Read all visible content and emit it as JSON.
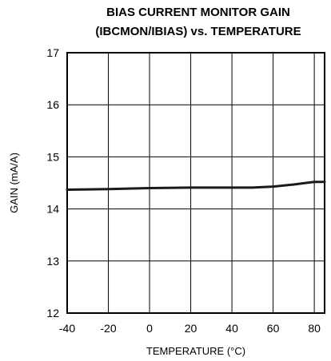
{
  "chart_data": {
    "type": "line",
    "title_line1": "BIAS CURRENT MONITOR GAIN",
    "title_line2": "(IBCMON/IBIAS) vs. TEMPERATURE",
    "xlabel": "TEMPERATURE (°C)",
    "ylabel": "GAIN (mA/A)",
    "xlim": [
      -40,
      85
    ],
    "ylim": [
      12,
      17
    ],
    "xticks": [
      "-40",
      "-20",
      "0",
      "20",
      "40",
      "60",
      "80"
    ],
    "yticks": [
      "12",
      "13",
      "14",
      "15",
      "16",
      "17"
    ],
    "grid": true,
    "series": [
      {
        "x": [
          -40,
          -20,
          0,
          20,
          40,
          50,
          60,
          70,
          80,
          85
        ],
        "y": [
          14.37,
          14.38,
          14.4,
          14.41,
          14.41,
          14.41,
          14.43,
          14.47,
          14.52,
          14.52
        ]
      }
    ]
  }
}
